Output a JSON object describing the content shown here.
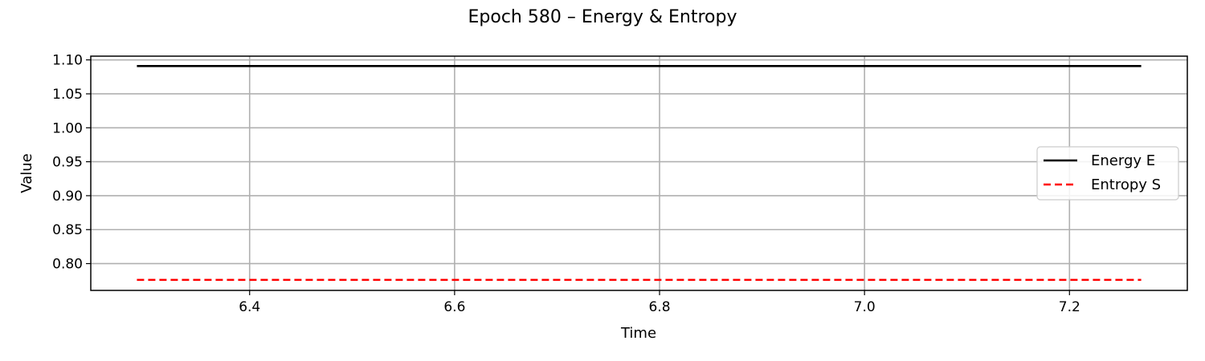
{
  "chart_data": {
    "type": "line",
    "title": "Epoch 580 – Energy & Entropy",
    "xlabel": "Time",
    "ylabel": "Value",
    "xlim": [
      6.245,
      7.315
    ],
    "ylim": [
      0.7605,
      1.1055
    ],
    "xticks": [
      6.4,
      6.6,
      6.8,
      7.0,
      7.2
    ],
    "xtick_labels": [
      "6.4",
      "6.6",
      "6.8",
      "7.0",
      "7.2"
    ],
    "yticks": [
      0.8,
      0.85,
      0.9,
      0.95,
      1.0,
      1.05,
      1.1
    ],
    "ytick_labels": [
      "0.80",
      "0.85",
      "0.90",
      "0.95",
      "1.00",
      "1.05",
      "1.10"
    ],
    "grid": true,
    "legend_position": "center-right",
    "series": [
      {
        "name": "Energy E",
        "x": [
          6.29,
          7.27
        ],
        "y": [
          1.091,
          1.091
        ],
        "color": "#000000",
        "style": "solid"
      },
      {
        "name": "Entropy S",
        "x": [
          6.29,
          7.27
        ],
        "y": [
          0.776,
          0.776
        ],
        "color": "#ff0000",
        "style": "dashed"
      }
    ]
  }
}
